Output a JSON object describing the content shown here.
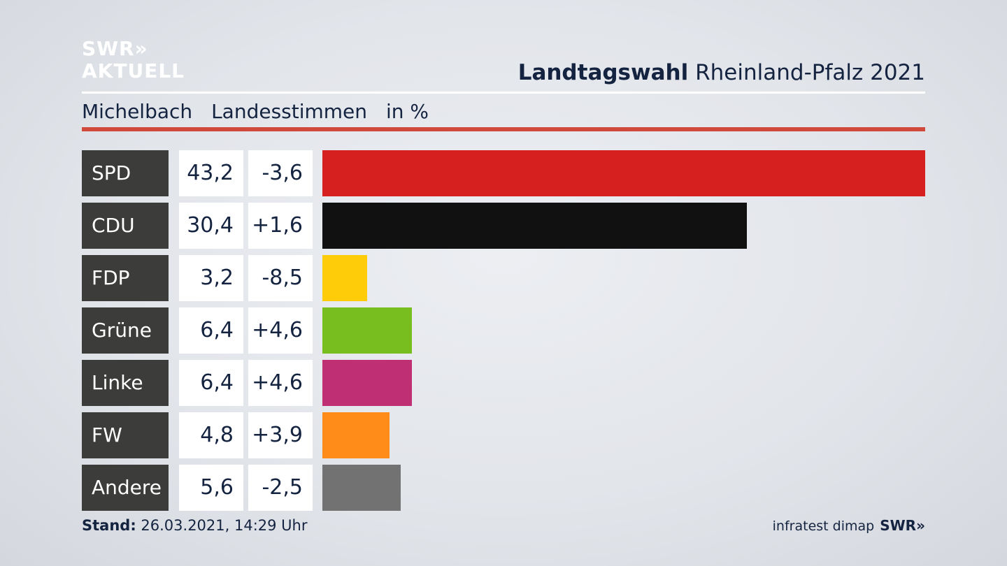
{
  "header": {
    "logo_line1": "SWR»",
    "logo_line2": "AKTUELL",
    "title_bold": "Landtagswahl",
    "title_rest": " Rheinland-Pfalz 2021",
    "place": "Michelbach",
    "vote_type": "Landesstimmen",
    "unit": "in %"
  },
  "chart_data": {
    "type": "bar",
    "orientation": "horizontal",
    "categories": [
      "SPD",
      "CDU",
      "FDP",
      "Grüne",
      "Linke",
      "FW",
      "Andere"
    ],
    "values": [
      43.2,
      30.4,
      3.2,
      6.4,
      6.4,
      4.8,
      5.6
    ],
    "value_labels": [
      "43,2",
      "30,4",
      "3,2",
      "6,4",
      "6,4",
      "4,8",
      "5,6"
    ],
    "changes": [
      -3.6,
      1.6,
      -8.5,
      4.6,
      4.6,
      3.9,
      -2.5
    ],
    "change_labels": [
      "-3,6",
      "+1,6",
      "-8,5",
      "+4,6",
      "+4,6",
      "+3,9",
      "-2,5"
    ],
    "colors": [
      "#d62020",
      "#111111",
      "#ffcc0a",
      "#78be1e",
      "#bf2f74",
      "#ff8c18",
      "#727272"
    ],
    "xlim": [
      0,
      43.2
    ],
    "grid": false
  },
  "footer": {
    "stand_label": "Stand:",
    "stand_value": " 26.03.2021, 14:29 Uhr",
    "source": "infratest dimap",
    "brand": "SWR»"
  }
}
